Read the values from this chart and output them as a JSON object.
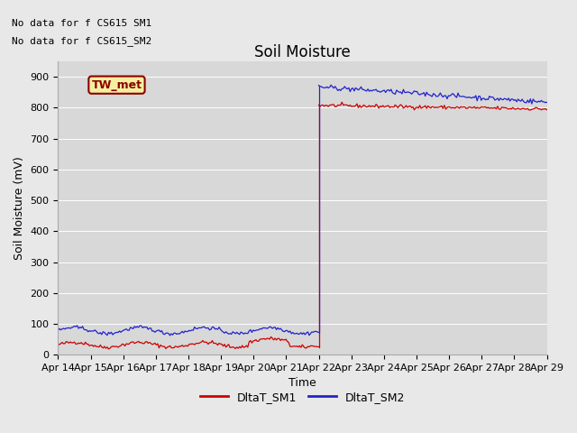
{
  "title": "Soil Moisture",
  "ylabel": "Soil Moisture (mV)",
  "xlabel": "Time",
  "annotation1": "No data for f CS615 SM1",
  "annotation2": "No data for f CS615_SM2",
  "legend_label": "TW_met",
  "legend_box_facecolor": "#f5f0a0",
  "legend_box_edgecolor": "#8b0000",
  "legend_text_color": "#8b0000",
  "ylim": [
    0,
    950
  ],
  "yticks": [
    0,
    100,
    200,
    300,
    400,
    500,
    600,
    700,
    800,
    900
  ],
  "x_labels": [
    "Apr 14",
    "Apr 15",
    "Apr 16",
    "Apr 17",
    "Apr 18",
    "Apr 19",
    "Apr 20",
    "Apr 21",
    "Apr 22",
    "Apr 23",
    "Apr 24",
    "Apr 25",
    "Apr 26",
    "Apr 27",
    "Apr 28",
    "Apr 29"
  ],
  "fig_facecolor": "#e8e8e8",
  "axes_facecolor": "#d8d8d8",
  "sm1_color": "#cc0000",
  "sm2_color": "#2222cc",
  "title_fontsize": 12,
  "label_fontsize": 9,
  "tick_fontsize": 8,
  "annot_fontsize": 8,
  "n_days_pre": 8,
  "n_days_post": 7
}
